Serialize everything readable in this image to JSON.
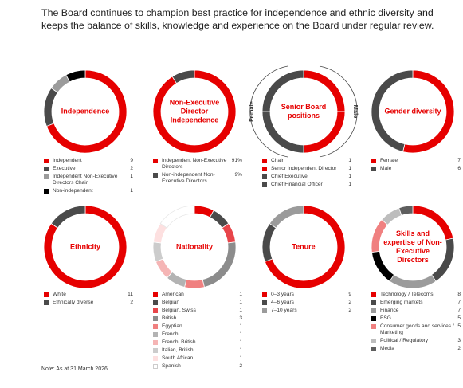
{
  "intro": "The Board continues to champion best practice for independence and ethnic diversity and keeps the balance of skills, knowledge and experience on the Board under regular review.",
  "note": "Note: As at 31 March 2026.",
  "chart_data": [
    {
      "type": "donut",
      "title": "Independence",
      "categories": [
        "Independent",
        "Executive",
        "Independent Non-Executive Directors Chair",
        "Non-independent"
      ],
      "values": [
        9,
        2,
        1,
        1
      ],
      "colors": [
        "#e60000",
        "#4a4a4a",
        "#9b9b9b",
        "#000000"
      ]
    },
    {
      "type": "donut",
      "title": "Non-Executive Director Independence",
      "categories": [
        "Independent Non-Executive Directors",
        "Non-independent Non-Executive Directors"
      ],
      "values": [
        91,
        9
      ],
      "value_labels": [
        "91%",
        "9%"
      ],
      "colors": [
        "#e60000",
        "#4a4a4a"
      ]
    },
    {
      "type": "donut",
      "title": "Senior Board positions",
      "categories": [
        "Chair",
        "Senior Independent Director",
        "Chief Executive",
        "Chief Financial Officer"
      ],
      "values": [
        1,
        1,
        1,
        1
      ],
      "colors": [
        "#e60000",
        "#e60000",
        "#4a4a4a",
        "#4a4a4a"
      ],
      "left_label": "Female",
      "right_label": "Male"
    },
    {
      "type": "donut",
      "title": "Gender diversity",
      "categories": [
        "Female",
        "Male"
      ],
      "values": [
        7,
        6
      ],
      "colors": [
        "#e60000",
        "#4a4a4a"
      ]
    },
    {
      "type": "donut",
      "title": "Ethnicity",
      "categories": [
        "White",
        "Ethnically diverse"
      ],
      "values": [
        11,
        2
      ],
      "colors": [
        "#e60000",
        "#4a4a4a"
      ]
    },
    {
      "type": "donut",
      "title": "Nationality",
      "categories": [
        "American",
        "Belgian",
        "Belgian, Swiss",
        "British",
        "Egyptian",
        "French",
        "French, British",
        "Italian, British",
        "South African",
        "Spanish"
      ],
      "values": [
        1,
        1,
        1,
        3,
        1,
        1,
        1,
        1,
        1,
        2
      ],
      "colors": [
        "#e60000",
        "#4a4a4a",
        "#e8454a",
        "#8c8c8c",
        "#f08080",
        "#b3b3b3",
        "#f5b5b5",
        "#cccccc",
        "#fde0e0",
        "#ffffff"
      ]
    },
    {
      "type": "donut",
      "title": "Tenure",
      "categories": [
        "0–3 years",
        "4–6 years",
        "7–10 years"
      ],
      "values": [
        9,
        2,
        2
      ],
      "colors": [
        "#e60000",
        "#4a4a4a",
        "#9b9b9b"
      ]
    },
    {
      "type": "donut",
      "title": "Skills and expertise of Non-Executive Directors",
      "categories": [
        "Technology / Telecoms",
        "Emerging markets",
        "Finance",
        "ESG",
        "Consumer goods and services / Marketing",
        "Political / Regulatory",
        "Media"
      ],
      "values": [
        8,
        7,
        7,
        5,
        5,
        3,
        2
      ],
      "colors": [
        "#e60000",
        "#4a4a4a",
        "#9b9b9b",
        "#000000",
        "#f08080",
        "#bdbdbd",
        "#5e5e5e"
      ]
    }
  ]
}
